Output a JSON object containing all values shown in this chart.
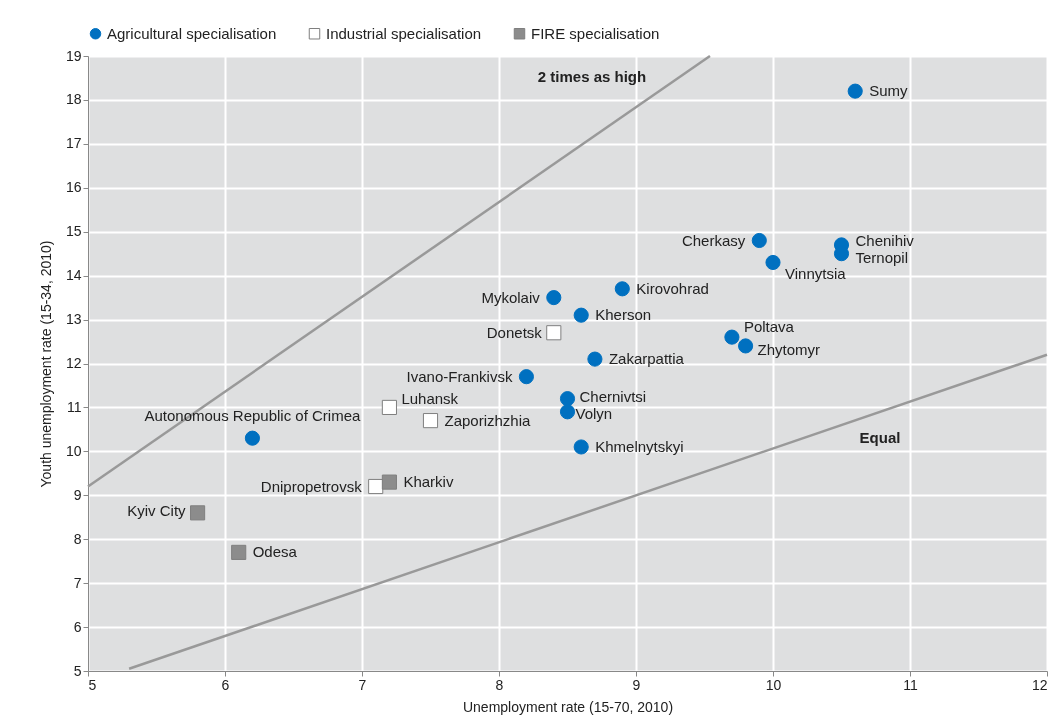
{
  "chart_data": {
    "type": "scatter",
    "xlabel": "Unemployment rate (15-70, 2010)",
    "ylabel": "Youth unemployment rate (15-34, 2010)",
    "xlim": [
      5,
      12
    ],
    "xticks": [
      5,
      6,
      7,
      8,
      9,
      10,
      11,
      12
    ],
    "ylim": [
      5,
      19
    ],
    "yticks": [
      5,
      6,
      7,
      8,
      9,
      10,
      11,
      12,
      13,
      14,
      15,
      16,
      17,
      18,
      19
    ],
    "grid": true,
    "legend": "top",
    "series": [
      {
        "name": "Agricultural specialisation",
        "color": "#0070c0",
        "marker": "circle",
        "x": [
          10.6,
          9.9,
          10.5,
          10.5,
          10.0,
          8.9,
          8.4,
          8.6,
          9.7,
          9.8,
          8.7,
          8.2,
          8.5,
          8.5,
          8.6,
          6.2
        ],
        "values": [
          18.2,
          14.8,
          14.7,
          14.5,
          14.3,
          13.7,
          13.5,
          13.1,
          12.6,
          12.4,
          12.1,
          11.7,
          11.2,
          10.9,
          10.1,
          10.3
        ]
      },
      {
        "name": "Industrial specialisation",
        "color": "#ffffff",
        "marker": "square",
        "x": [
          8.4,
          7.2,
          7.5,
          7.1
        ],
        "values": [
          12.7,
          11.0,
          10.7,
          9.2
        ]
      },
      {
        "name": "FIRE specialisation",
        "color": "#8c8c8c",
        "marker": "square",
        "x": [
          5.8,
          7.2,
          6.1
        ],
        "values": [
          8.6,
          9.3,
          7.7
        ]
      },
      {
        "type": "line",
        "color": "#999999",
        "x": [
          5.0,
          9.54
        ],
        "values": [
          9.2,
          19.0
        ]
      },
      {
        "type": "line",
        "color": "#999999",
        "x": [
          5.3,
          12.0
        ],
        "values": [
          5.05,
          12.2
        ]
      }
    ],
    "annotations": [
      {
        "text": "Sumy",
        "x": 10.6,
        "y": 18.2
      },
      {
        "text": "Cherkasy",
        "x": 9.9,
        "y": 14.8
      },
      {
        "text": "Chenihiv",
        "x": 10.5,
        "y": 14.7
      },
      {
        "text": "Ternopil",
        "x": 10.5,
        "y": 14.5
      },
      {
        "text": "Vinnytsia",
        "x": 10.0,
        "y": 14.3
      },
      {
        "text": "Kirovohrad",
        "x": 8.9,
        "y": 13.7
      },
      {
        "text": "Mykolaiv",
        "x": 8.4,
        "y": 13.5
      },
      {
        "text": "Kherson",
        "x": 8.6,
        "y": 13.1
      },
      {
        "text": "Poltava",
        "x": 9.7,
        "y": 12.6
      },
      {
        "text": "Zhytomyr",
        "x": 9.8,
        "y": 12.4
      },
      {
        "text": "Zakarpattia",
        "x": 8.7,
        "y": 12.1
      },
      {
        "text": "Ivano-Frankivsk",
        "x": 8.2,
        "y": 11.7
      },
      {
        "text": "Chernivtsi",
        "x": 8.5,
        "y": 11.2
      },
      {
        "text": "Volyn",
        "x": 8.5,
        "y": 10.9
      },
      {
        "text": "Khmelnytskyi",
        "x": 8.6,
        "y": 10.1
      },
      {
        "text": "Autonomous Republic of Crimea",
        "x": 6.2,
        "y": 10.3
      },
      {
        "text": "Donetsk",
        "x": 8.4,
        "y": 12.7
      },
      {
        "text": "Luhansk",
        "x": 7.2,
        "y": 11.0
      },
      {
        "text": "Zaporizhzhia",
        "x": 7.5,
        "y": 10.7
      },
      {
        "text": "Dnipropetrovsk",
        "x": 7.1,
        "y": 9.2
      },
      {
        "text": "Kyiv City",
        "x": 5.8,
        "y": 8.6
      },
      {
        "text": "Kharkiv",
        "x": 7.2,
        "y": 9.3
      },
      {
        "text": "Odesa",
        "x": 6.1,
        "y": 7.7
      },
      "2 times as high",
      "Equal"
    ]
  }
}
